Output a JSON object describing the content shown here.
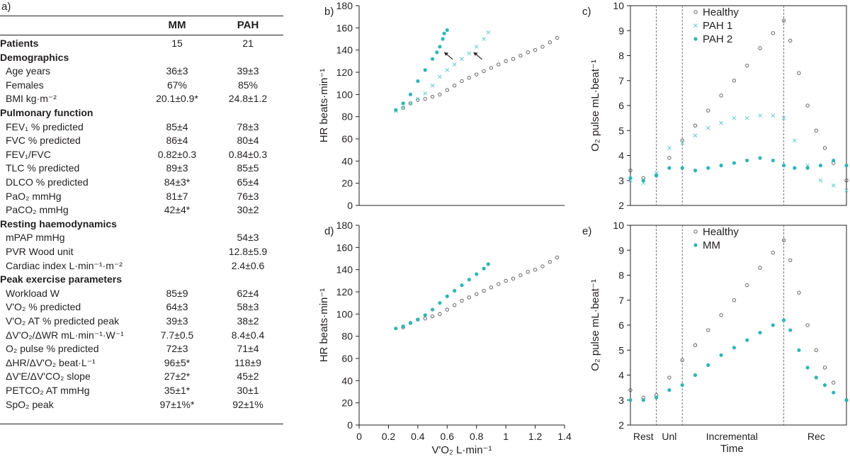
{
  "table": {
    "panel_label": "a)",
    "col_mm": "MM",
    "col_pah": "PAH",
    "rows": [
      {
        "label": "Patients",
        "mm": "15",
        "pah": "21",
        "style": "bold"
      },
      {
        "label": "Demographics",
        "mm": "",
        "pah": "",
        "style": "bold"
      },
      {
        "label": "Age years",
        "mm": "36±3",
        "pah": "39±3",
        "style": "indent"
      },
      {
        "label": "Females",
        "mm": "67%",
        "pah": "85%",
        "style": "indent"
      },
      {
        "label": "BMI kg·m⁻²",
        "mm": "20.1±0.9*",
        "pah": "24.8±1.2",
        "style": "indent"
      },
      {
        "label": "Pulmonary function",
        "mm": "",
        "pah": "",
        "style": "bold"
      },
      {
        "label": "FEV₁ % predicted",
        "mm": "85±4",
        "pah": "78±3",
        "style": "indent"
      },
      {
        "label": "FVC % predicted",
        "mm": "86±4",
        "pah": "80±4",
        "style": "indent"
      },
      {
        "label": "FEV₁/FVC",
        "mm": "0.82±0.3",
        "pah": "0.84±0.3",
        "style": "indent"
      },
      {
        "label": "TLC % predicted",
        "mm": "89±3",
        "pah": "85±5",
        "style": "indent"
      },
      {
        "label": "DLCO % predicted",
        "mm": "84±3*",
        "pah": "65±4",
        "style": "indent"
      },
      {
        "label": "PaO₂ mmHg",
        "mm": "81±7",
        "pah": "76±3",
        "style": "indent"
      },
      {
        "label": "PaCO₂ mmHg",
        "mm": "42±4*",
        "pah": "30±2",
        "style": "indent"
      },
      {
        "label": "Resting haemodynamics",
        "mm": "",
        "pah": "",
        "style": "bold"
      },
      {
        "label": "mPAP mmHg",
        "mm": "",
        "pah": "54±3",
        "style": "indent"
      },
      {
        "label": "PVR Wood unit",
        "mm": "",
        "pah": "12.8±5.9",
        "style": "indent"
      },
      {
        "label": "Cardiac index L·min⁻¹·m⁻²",
        "mm": "",
        "pah": "2.4±0.6",
        "style": "indent"
      },
      {
        "label": "Peak exercise parameters",
        "mm": "",
        "pah": "",
        "style": "bold"
      },
      {
        "label": "Workload W",
        "mm": "85±9",
        "pah": "62±4",
        "style": "indent"
      },
      {
        "label": "V'O₂ % predicted",
        "mm": "64±3",
        "pah": "58±3",
        "style": "indent"
      },
      {
        "label": "V'O₂ AT % predicted peak",
        "mm": "39±3",
        "pah": "38±2",
        "style": "indent"
      },
      {
        "label": "ΔV'O₂/ΔWR mL·min⁻¹·W⁻¹",
        "mm": "7.7±0.5",
        "pah": "8.4±0.4",
        "style": "indent"
      },
      {
        "label": "O₂ pulse % predicted",
        "mm": "72±3",
        "pah": "71±4",
        "style": "indent"
      },
      {
        "label": "ΔHR/ΔV'O₂ beat·L⁻¹",
        "mm": "96±5*",
        "pah": "118±9",
        "style": "indent"
      },
      {
        "label": "ΔV'E/ΔV'CO₂ slope",
        "mm": "27±2*",
        "pah": "45±2",
        "style": "indent"
      },
      {
        "label": "PETCO₂ AT mmHg",
        "mm": "35±1*",
        "pah": "30±1",
        "style": "indent"
      },
      {
        "label": "SpO₂ peak",
        "mm": "97±1%*",
        "pah": "92±1%",
        "style": "indent"
      }
    ]
  },
  "colors": {
    "teal": "#2fb5b7",
    "light_teal": "#6fd0d2",
    "dark": "#231f20",
    "gray_point": "#555555"
  },
  "chart_data": [
    {
      "id": "b",
      "panel_label": "b)",
      "type": "scatter",
      "ylabel": "HR beats·min⁻¹",
      "xlim": [
        0,
        1.4
      ],
      "ylim": [
        0,
        180
      ],
      "yticks": [
        0,
        20,
        40,
        60,
        80,
        100,
        120,
        140,
        160,
        180
      ],
      "xticks": [],
      "legend": [],
      "series": [
        {
          "marker": "open-circle",
          "color": "#555555",
          "points": [
            [
              0.3,
              88
            ],
            [
              0.35,
              92
            ],
            [
              0.4,
              95
            ],
            [
              0.45,
              96
            ],
            [
              0.5,
              98
            ],
            [
              0.55,
              100
            ],
            [
              0.6,
              104
            ],
            [
              0.65,
              108
            ],
            [
              0.7,
              112
            ],
            [
              0.75,
              115
            ],
            [
              0.8,
              118
            ],
            [
              0.85,
              121
            ],
            [
              0.9,
              124
            ],
            [
              0.95,
              127
            ],
            [
              1.0,
              130
            ],
            [
              1.05,
              132
            ],
            [
              1.1,
              135
            ],
            [
              1.15,
              138
            ],
            [
              1.2,
              140
            ],
            [
              1.25,
              143
            ],
            [
              1.3,
              147
            ],
            [
              1.35,
              151
            ]
          ]
        },
        {
          "marker": "cross",
          "color": "#6fd0d2",
          "points": [
            [
              0.25,
              85
            ],
            [
              0.3,
              88
            ],
            [
              0.35,
              92
            ],
            [
              0.4,
              96
            ],
            [
              0.45,
              101
            ],
            [
              0.5,
              108
            ],
            [
              0.55,
              116
            ],
            [
              0.6,
              122
            ],
            [
              0.65,
              127
            ],
            [
              0.7,
              132
            ],
            [
              0.75,
              137
            ],
            [
              0.8,
              143
            ],
            [
              0.85,
              150
            ],
            [
              0.88,
              156
            ]
          ]
        },
        {
          "marker": "filled-circle",
          "color": "#2fb5b7",
          "points": [
            [
              0.25,
              86
            ],
            [
              0.3,
              92
            ],
            [
              0.35,
              100
            ],
            [
              0.4,
              112
            ],
            [
              0.45,
              122
            ],
            [
              0.5,
              132
            ],
            [
              0.53,
              138
            ],
            [
              0.55,
              143
            ],
            [
              0.57,
              150
            ],
            [
              0.58,
              155
            ],
            [
              0.6,
              158
            ]
          ]
        }
      ],
      "arrows": [
        {
          "x": 0.58,
          "y": 138
        },
        {
          "x": 0.78,
          "y": 138
        }
      ]
    },
    {
      "id": "c",
      "panel_label": "c)",
      "type": "scatter",
      "ylabel": "O₂ pulse mL·beat⁻¹",
      "xlim": [
        0,
        100
      ],
      "ylim": [
        2,
        10
      ],
      "yticks": [
        2,
        3,
        4,
        5,
        6,
        7,
        8,
        9,
        10
      ],
      "phase_lines": [
        12,
        24,
        71
      ],
      "legend": [
        {
          "label": "Healthy",
          "marker": "open-circle",
          "color": "#555555"
        },
        {
          "label": "PAH 1",
          "marker": "cross",
          "color": "#6fd0d2"
        },
        {
          "label": "PAH 2",
          "marker": "filled-circle",
          "color": "#2fb5b7"
        }
      ],
      "series": [
        {
          "marker": "open-circle",
          "color": "#555555",
          "points": [
            [
              0,
              3.4
            ],
            [
              6,
              3.1
            ],
            [
              12,
              3.2
            ],
            [
              18,
              3.9
            ],
            [
              24,
              4.6
            ],
            [
              30,
              5.2
            ],
            [
              36,
              5.8
            ],
            [
              42,
              6.4
            ],
            [
              48,
              7.0
            ],
            [
              54,
              7.6
            ],
            [
              60,
              8.3
            ],
            [
              66,
              8.9
            ],
            [
              71,
              9.4
            ],
            [
              74,
              8.6
            ],
            [
              78,
              7.3
            ],
            [
              82,
              6.0
            ],
            [
              86,
              5.0
            ],
            [
              90,
              4.3
            ],
            [
              94,
              3.7
            ],
            [
              100,
              3.0
            ]
          ]
        },
        {
          "marker": "cross",
          "color": "#6fd0d2",
          "points": [
            [
              0,
              3.0
            ],
            [
              6,
              2.9
            ],
            [
              12,
              3.3
            ],
            [
              18,
              4.3
            ],
            [
              24,
              4.5
            ],
            [
              30,
              4.8
            ],
            [
              36,
              5.1
            ],
            [
              42,
              5.3
            ],
            [
              48,
              5.5
            ],
            [
              54,
              5.5
            ],
            [
              60,
              5.6
            ],
            [
              66,
              5.6
            ],
            [
              71,
              5.5
            ],
            [
              76,
              4.6
            ],
            [
              82,
              3.6
            ],
            [
              88,
              3.0
            ],
            [
              94,
              2.8
            ],
            [
              100,
              2.6
            ]
          ]
        },
        {
          "marker": "filled-circle",
          "color": "#2fb5b7",
          "points": [
            [
              0,
              3.1
            ],
            [
              6,
              3.0
            ],
            [
              12,
              3.2
            ],
            [
              18,
              3.5
            ],
            [
              24,
              3.5
            ],
            [
              30,
              3.4
            ],
            [
              36,
              3.5
            ],
            [
              42,
              3.6
            ],
            [
              48,
              3.7
            ],
            [
              54,
              3.8
            ],
            [
              60,
              3.9
            ],
            [
              66,
              3.8
            ],
            [
              71,
              3.6
            ],
            [
              76,
              3.5
            ],
            [
              82,
              3.5
            ],
            [
              88,
              3.6
            ],
            [
              94,
              3.8
            ],
            [
              100,
              3.6
            ]
          ]
        }
      ]
    },
    {
      "id": "d",
      "panel_label": "d)",
      "type": "scatter",
      "xlabel": "V'O₂ L·min⁻¹",
      "ylabel": "HR beats·min⁻¹",
      "xlim": [
        0,
        1.4
      ],
      "ylim": [
        0,
        180
      ],
      "yticks": [
        0,
        20,
        40,
        60,
        80,
        100,
        120,
        140,
        160,
        180
      ],
      "xticks": [
        0,
        0.2,
        0.4,
        0.6,
        0.8,
        1.0,
        1.2,
        1.4
      ],
      "legend": [],
      "series": [
        {
          "marker": "open-circle",
          "color": "#555555",
          "points": [
            [
              0.3,
              88
            ],
            [
              0.35,
              92
            ],
            [
              0.4,
              95
            ],
            [
              0.45,
              96
            ],
            [
              0.5,
              98
            ],
            [
              0.55,
              100
            ],
            [
              0.6,
              104
            ],
            [
              0.65,
              108
            ],
            [
              0.7,
              112
            ],
            [
              0.75,
              115
            ],
            [
              0.8,
              118
            ],
            [
              0.85,
              121
            ],
            [
              0.9,
              124
            ],
            [
              0.95,
              127
            ],
            [
              1.0,
              130
            ],
            [
              1.05,
              132
            ],
            [
              1.1,
              135
            ],
            [
              1.15,
              138
            ],
            [
              1.2,
              140
            ],
            [
              1.25,
              143
            ],
            [
              1.3,
              147
            ],
            [
              1.35,
              151
            ]
          ]
        },
        {
          "marker": "filled-circle",
          "color": "#2fb5b7",
          "points": [
            [
              0.25,
              87
            ],
            [
              0.3,
              89
            ],
            [
              0.35,
              92
            ],
            [
              0.4,
              95
            ],
            [
              0.45,
              99
            ],
            [
              0.5,
              104
            ],
            [
              0.55,
              110
            ],
            [
              0.6,
              116
            ],
            [
              0.65,
              121
            ],
            [
              0.7,
              126
            ],
            [
              0.75,
              131
            ],
            [
              0.8,
              136
            ],
            [
              0.85,
              141
            ],
            [
              0.88,
              145
            ]
          ]
        }
      ]
    },
    {
      "id": "e",
      "panel_label": "e)",
      "type": "scatter",
      "xlabel": "Time",
      "ylabel": "O₂ pulse mL·beat⁻¹",
      "xlim": [
        0,
        100
      ],
      "ylim": [
        2,
        10
      ],
      "yticks": [
        2,
        3,
        4,
        5,
        6,
        7,
        8,
        9,
        10
      ],
      "phase_lines": [
        12,
        24,
        71
      ],
      "phases": [
        {
          "label": "Rest",
          "x": 6
        },
        {
          "label": "Unl",
          "x": 18
        },
        {
          "label": "Incremental",
          "x": 47
        },
        {
          "label": "Rec",
          "x": 86
        }
      ],
      "legend": [
        {
          "label": "Healthy",
          "marker": "open-circle",
          "color": "#555555"
        },
        {
          "label": "MM",
          "marker": "filled-circle",
          "color": "#2fb5b7"
        }
      ],
      "series": [
        {
          "marker": "open-circle",
          "color": "#555555",
          "points": [
            [
              0,
              3.4
            ],
            [
              6,
              3.1
            ],
            [
              12,
              3.2
            ],
            [
              18,
              3.9
            ],
            [
              24,
              4.6
            ],
            [
              30,
              5.2
            ],
            [
              36,
              5.8
            ],
            [
              42,
              6.4
            ],
            [
              48,
              7.0
            ],
            [
              54,
              7.6
            ],
            [
              60,
              8.3
            ],
            [
              66,
              8.9
            ],
            [
              71,
              9.4
            ],
            [
              74,
              8.6
            ],
            [
              78,
              7.3
            ],
            [
              82,
              6.0
            ],
            [
              86,
              5.0
            ],
            [
              90,
              4.3
            ],
            [
              94,
              3.7
            ],
            [
              100,
              3.0
            ]
          ]
        },
        {
          "marker": "filled-circle",
          "color": "#2fb5b7",
          "points": [
            [
              0,
              3.0
            ],
            [
              6,
              3.0
            ],
            [
              12,
              3.1
            ],
            [
              18,
              3.4
            ],
            [
              24,
              3.6
            ],
            [
              30,
              4.0
            ],
            [
              36,
              4.4
            ],
            [
              42,
              4.8
            ],
            [
              48,
              5.1
            ],
            [
              54,
              5.4
            ],
            [
              60,
              5.7
            ],
            [
              66,
              6.0
            ],
            [
              71,
              6.2
            ],
            [
              74,
              5.8
            ],
            [
              78,
              5.0
            ],
            [
              82,
              4.3
            ],
            [
              86,
              3.9
            ],
            [
              90,
              3.6
            ],
            [
              94,
              3.3
            ],
            [
              100,
              3.0
            ]
          ]
        }
      ]
    }
  ]
}
